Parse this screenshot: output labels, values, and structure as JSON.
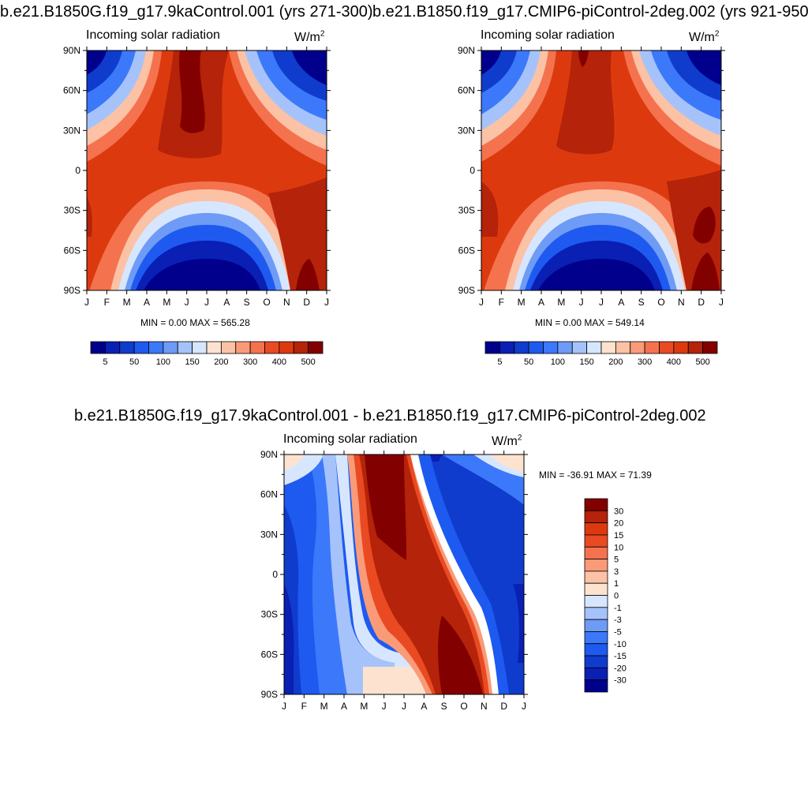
{
  "panels": [
    {
      "id": "p1",
      "title": "b.e21.B1850G.f19_g17.9kaControl.001 (yrs 271-300)",
      "subtitle": "Incoming solar radiation",
      "units": "W/m",
      "units_sup": "2",
      "stats": "MIN =   0.00 MAX = 565.28"
    },
    {
      "id": "p2",
      "title": "b.e21.B1850.f19_g17.CMIP6-piControl-2deg.002 (yrs 921-950)",
      "subtitle": "Incoming solar radiation",
      "units": "W/m",
      "units_sup": "2",
      "stats": "MIN =   0.00 MAX = 549.14"
    },
    {
      "id": "p3",
      "title": "b.e21.B1850G.f19_g17.9kaControl.001 - b.e21.B1850.f19_g17.CMIP6-piControl-2deg.002",
      "subtitle": "Incoming solar radiation",
      "units": "W/m",
      "units_sup": "2",
      "stats": "MIN = -36.91 MAX =  71.39"
    }
  ],
  "chart_data": [
    {
      "type": "heatmap",
      "title": "b.e21.B1850G.f19_g17.9kaControl.001 (yrs 271-300)",
      "subtitle": "Incoming solar radiation",
      "units": "W/m2",
      "x_ticks": [
        "J",
        "F",
        "M",
        "A",
        "M",
        "J",
        "J",
        "A",
        "S",
        "O",
        "N",
        "D",
        "J"
      ],
      "y_ticks": [
        "90N",
        "60N",
        "30N",
        "0",
        "30S",
        "60S",
        "90S"
      ],
      "ylim": [
        -90,
        90
      ],
      "min": 0.0,
      "max": 565.28,
      "colorbar": {
        "orientation": "horizontal",
        "levels": [
          5,
          25,
          50,
          75,
          100,
          125,
          150,
          175,
          200,
          250,
          300,
          350,
          400,
          450,
          500
        ],
        "labels": [
          "5",
          "50",
          "100",
          "150",
          "200",
          "300",
          "400",
          "500"
        ]
      }
    },
    {
      "type": "heatmap",
      "title": "b.e21.B1850.f19_g17.CMIP6-piControl-2deg.002 (yrs 921-950)",
      "subtitle": "Incoming solar radiation",
      "units": "W/m2",
      "x_ticks": [
        "J",
        "F",
        "M",
        "A",
        "M",
        "J",
        "J",
        "A",
        "S",
        "O",
        "N",
        "D",
        "J"
      ],
      "y_ticks": [
        "90N",
        "60N",
        "30N",
        "0",
        "30S",
        "60S",
        "90S"
      ],
      "ylim": [
        -90,
        90
      ],
      "min": 0.0,
      "max": 549.14,
      "colorbar": {
        "orientation": "horizontal",
        "levels": [
          5,
          25,
          50,
          75,
          100,
          125,
          150,
          175,
          200,
          250,
          300,
          350,
          400,
          450,
          500
        ],
        "labels": [
          "5",
          "50",
          "100",
          "150",
          "200",
          "300",
          "400",
          "500"
        ]
      }
    },
    {
      "type": "heatmap",
      "title": "b.e21.B1850G.f19_g17.9kaControl.001 - b.e21.B1850.f19_g17.CMIP6-piControl-2deg.002",
      "subtitle": "Incoming solar radiation",
      "units": "W/m2",
      "x_ticks": [
        "J",
        "F",
        "M",
        "A",
        "M",
        "J",
        "J",
        "A",
        "S",
        "O",
        "N",
        "D",
        "J"
      ],
      "y_ticks": [
        "90N",
        "60N",
        "30N",
        "0",
        "30S",
        "60S",
        "90S"
      ],
      "ylim": [
        -90,
        90
      ],
      "min": -36.91,
      "max": 71.39,
      "colorbar": {
        "orientation": "vertical",
        "labels": [
          "30",
          "20",
          "15",
          "10",
          "5",
          "3",
          "1",
          "0",
          "-1",
          "-3",
          "-5",
          "-10",
          "-15",
          "-20",
          "-30"
        ]
      }
    }
  ],
  "colors": {
    "palette": [
      "#00008c",
      "#0a1fb4",
      "#0f3ccd",
      "#1e5af0",
      "#3c78fa",
      "#6e9bf5",
      "#a5c3fa",
      "#d7e6ff",
      "#fde3cf",
      "#fbc2a5",
      "#f99b78",
      "#f5724f",
      "#ea4a22",
      "#dc3a0e",
      "#b4230a",
      "#820000"
    ]
  }
}
